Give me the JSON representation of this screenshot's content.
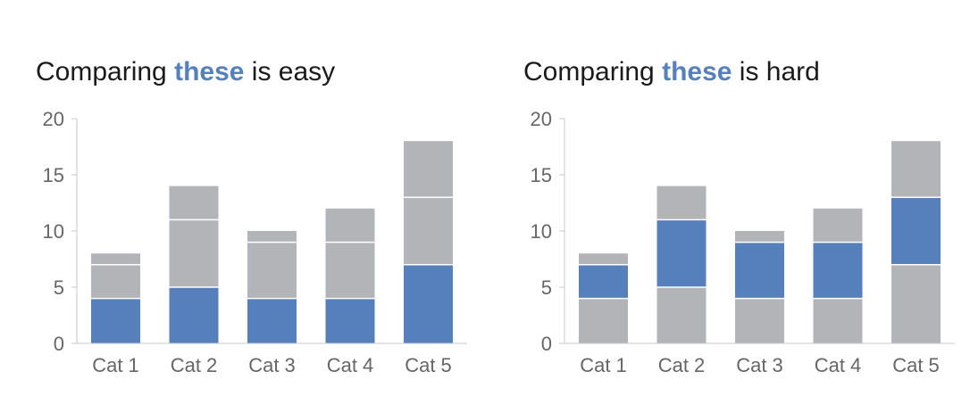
{
  "colors": {
    "highlight": "#5580bc",
    "other": "#b3b4b8",
    "axis": "#c8c8c8",
    "text": "#666666",
    "title": "#1a1a1a"
  },
  "chart_data": [
    {
      "type": "bar",
      "stacked": true,
      "title_parts": [
        "Comparing ",
        "these",
        " is easy"
      ],
      "categories": [
        "Cat 1",
        "Cat 2",
        "Cat 3",
        "Cat 4",
        "Cat 5"
      ],
      "series": [
        {
          "values": [
            4,
            5,
            4,
            4,
            7
          ],
          "color": "#5580bc"
        },
        {
          "values": [
            3,
            6,
            5,
            5,
            6
          ],
          "color": "#b3b4b8"
        },
        {
          "values": [
            1,
            3,
            1,
            3,
            5
          ],
          "color": "#b3b4b8"
        }
      ],
      "ylim": [
        0,
        20
      ],
      "yticks": [
        "0",
        "5",
        "10",
        "15",
        "20"
      ],
      "grid": false
    },
    {
      "type": "bar",
      "stacked": true,
      "title_parts": [
        "Comparing ",
        "these",
        " is hard"
      ],
      "categories": [
        "Cat 1",
        "Cat 2",
        "Cat 3",
        "Cat 4",
        "Cat 5"
      ],
      "series": [
        {
          "values": [
            4,
            5,
            4,
            4,
            7
          ],
          "color": "#b3b4b8"
        },
        {
          "values": [
            3,
            6,
            5,
            5,
            6
          ],
          "color": "#5580bc"
        },
        {
          "values": [
            1,
            3,
            1,
            3,
            5
          ],
          "color": "#b3b4b8"
        }
      ],
      "ylim": [
        0,
        20
      ],
      "yticks": [
        "0",
        "5",
        "10",
        "15",
        "20"
      ],
      "grid": false
    }
  ]
}
